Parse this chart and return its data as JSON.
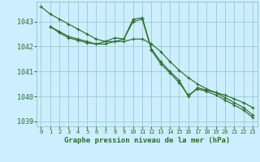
{
  "background_color": "#cceeff",
  "grid_color": "#99cccc",
  "line_color": "#2d6e2d",
  "title": "Graphe pression niveau de la mer (hPa)",
  "xlim": [
    -0.5,
    23.5
  ],
  "ylim": [
    1038.8,
    1043.8
  ],
  "yticks": [
    1039,
    1040,
    1041,
    1042,
    1043
  ],
  "xticks": [
    0,
    1,
    2,
    3,
    4,
    5,
    6,
    7,
    8,
    9,
    10,
    11,
    12,
    13,
    14,
    15,
    16,
    17,
    18,
    19,
    20,
    21,
    22,
    23
  ],
  "series1": {
    "x": [
      0,
      1,
      2,
      3,
      4,
      5,
      6,
      7,
      8,
      9,
      10,
      11,
      12,
      13,
      14,
      15,
      16,
      17,
      18,
      19,
      20,
      21,
      22,
      23
    ],
    "y": [
      1043.6,
      1043.3,
      1043.1,
      1042.9,
      1042.7,
      1042.5,
      1042.3,
      1042.2,
      1042.2,
      1042.2,
      1042.3,
      1042.3,
      1042.1,
      1041.8,
      1041.4,
      1041.05,
      1040.75,
      1040.5,
      1040.3,
      1040.15,
      1040.05,
      1039.9,
      1039.75,
      1039.55
    ]
  },
  "series2": {
    "x": [
      1,
      2,
      3,
      4,
      5,
      6,
      7,
      8,
      9,
      10,
      11,
      12,
      13,
      14,
      15,
      16,
      17,
      18,
      19,
      20,
      21,
      22,
      23
    ],
    "y": [
      1042.8,
      1042.6,
      1042.4,
      1042.3,
      1042.2,
      1042.1,
      1042.1,
      1042.2,
      1042.3,
      1043.1,
      1043.15,
      1041.9,
      1041.4,
      1041.0,
      1040.65,
      1040.0,
      1040.35,
      1040.25,
      1040.15,
      1039.95,
      1039.75,
      1039.55,
      1039.25
    ]
  },
  "series3": {
    "x": [
      1,
      2,
      3,
      4,
      5,
      6,
      7,
      8,
      9,
      10,
      11,
      12,
      13,
      14,
      15,
      16,
      17,
      18,
      19,
      20,
      21,
      22,
      23
    ],
    "y": [
      1042.8,
      1042.55,
      1042.35,
      1042.25,
      1042.15,
      1042.1,
      1042.2,
      1042.35,
      1042.3,
      1043.0,
      1043.1,
      1041.85,
      1041.3,
      1040.95,
      1040.55,
      1040.05,
      1040.3,
      1040.2,
      1040.05,
      1039.85,
      1039.65,
      1039.45,
      1039.15
    ]
  }
}
